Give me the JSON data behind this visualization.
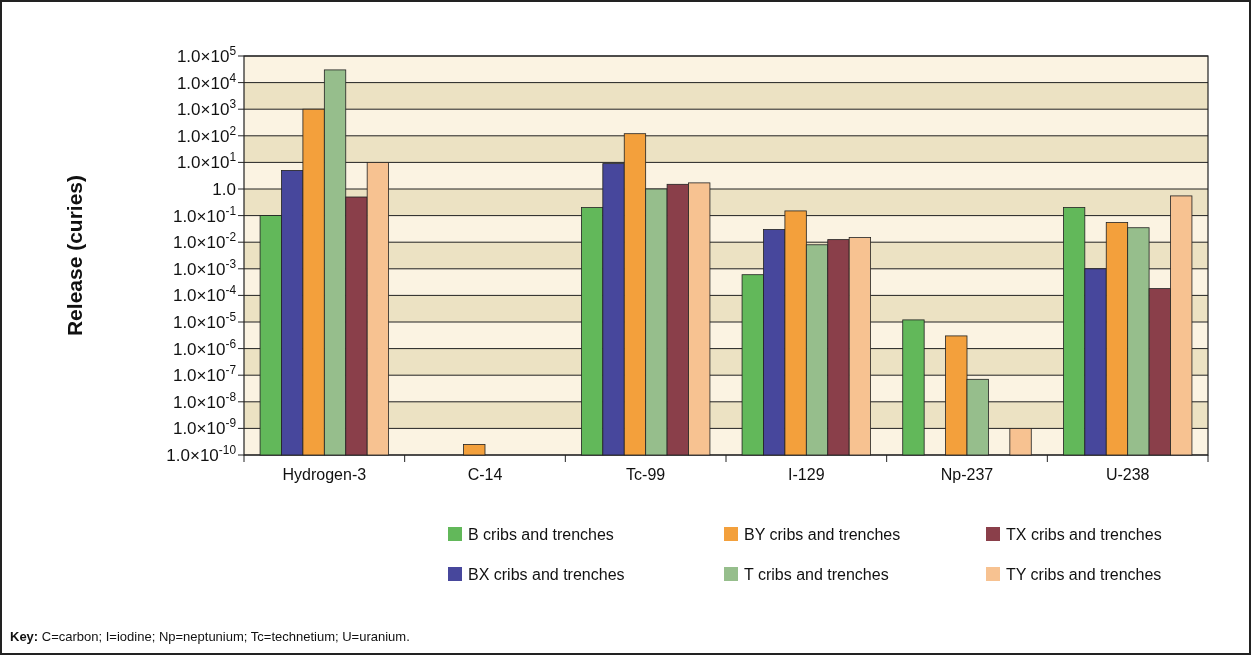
{
  "chart_data": {
    "type": "bar",
    "ylabel": "Release (curies)",
    "categories": [
      "Hydrogen-3",
      "C-14",
      "Tc-99",
      "I-129",
      "Np-237",
      "U-238"
    ],
    "series": [
      {
        "name": "B cribs and trenches",
        "color": "#62b85a",
        "values": [
          0.1,
          null,
          0.2,
          0.0006,
          1.2e-05,
          0.2
        ]
      },
      {
        "name": "BX cribs and trenches",
        "color": "#47479c",
        "values": [
          5,
          null,
          9,
          0.03,
          null,
          0.001
        ]
      },
      {
        "name": "BY cribs and trenches",
        "color": "#f3a03c",
        "values": [
          1000,
          2.5e-10,
          120,
          0.15,
          3e-06,
          0.055
        ]
      },
      {
        "name": "T cribs and trenches",
        "color": "#96be8c",
        "values": [
          30000,
          null,
          1,
          0.008,
          7e-08,
          0.035
        ]
      },
      {
        "name": "TX cribs and trenches",
        "color": "#8a3f4a",
        "values": [
          0.5,
          null,
          1.5,
          0.0125,
          null,
          0.00018
        ]
      },
      {
        "name": "TY cribs and trenches",
        "color": "#f7c291",
        "values": [
          10,
          null,
          1.7,
          0.015,
          1e-09,
          0.55
        ]
      }
    ],
    "log": true,
    "ylim": [
      1e-10,
      100000
    ],
    "yticks": [
      {
        "value": 100000,
        "label": "1.0×10$^{5}$"
      },
      {
        "value": 10000,
        "label": "1.0×10$^{4}$"
      },
      {
        "value": 1000,
        "label": "1.0×10$^{3}$"
      },
      {
        "value": 100,
        "label": "1.0×10$^{2}$"
      },
      {
        "value": 10,
        "label": "1.0×10$^{1}$"
      },
      {
        "value": 1,
        "label": "1.0"
      },
      {
        "value": 0.1,
        "label": "1.0×10$^{-1}$"
      },
      {
        "value": 0.01,
        "label": "1.0×10$^{-2}$"
      },
      {
        "value": 0.001,
        "label": "1.0×10$^{-3}$"
      },
      {
        "value": 0.0001,
        "label": "1.0×10$^{-4}$"
      },
      {
        "value": 1e-05,
        "label": "1.0×10$^{-5}$"
      },
      {
        "value": 1e-06,
        "label": "1.0×10$^{-6}$"
      },
      {
        "value": 1e-07,
        "label": "1.0×10$^{-7}$"
      },
      {
        "value": 1e-08,
        "label": "1.0×10$^{-8}$"
      },
      {
        "value": 1e-09,
        "label": "1.0×10$^{-9}$"
      },
      {
        "value": 1e-10,
        "label": "1.0×10$^{-10}$"
      }
    ],
    "grid": "y",
    "legend": "bottom",
    "bands": [
      {
        "axis": "y",
        "from": 1000,
        "to": 10000,
        "color": "#ece2c3"
      },
      {
        "axis": "y",
        "from": 10,
        "to": 100,
        "color": "#ece2c3"
      },
      {
        "axis": "y",
        "from": 0.1,
        "to": 1,
        "color": "#ece2c3"
      },
      {
        "axis": "y",
        "from": 0.001,
        "to": 0.01,
        "color": "#ece2c3"
      },
      {
        "axis": "y",
        "from": 1e-05,
        "to": 0.0001,
        "color": "#ece2c3"
      },
      {
        "axis": "y",
        "from": 1e-07,
        "to": 1e-06,
        "color": "#ece2c3"
      },
      {
        "axis": "y",
        "from": 1e-09,
        "to": 1e-08,
        "color": "#ece2c3"
      }
    ],
    "annotations": [
      "Key: C=carbon; I=iodine; Np=neptunium; Tc=technetium; U=uranium."
    ]
  }
}
